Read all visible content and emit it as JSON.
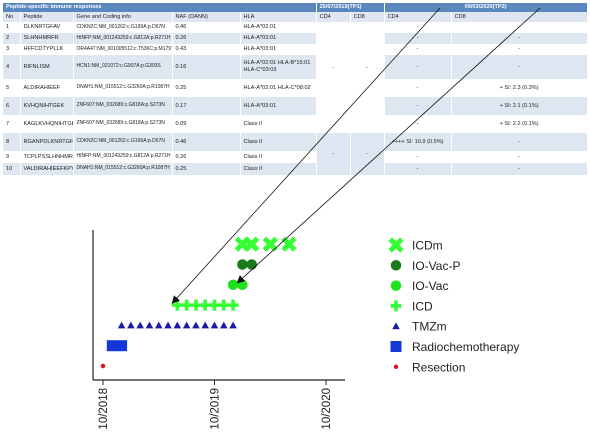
{
  "table": {
    "title": "Peptide-specific immune responses",
    "tp1_label": "25/07/2019(TP1)",
    "tp2_label": "09/03/2020(TP2)",
    "headers": [
      "No",
      "Peptide",
      "Gene and Coding info",
      "NAF (DANN)",
      "HLA",
      "CD4",
      "CD8",
      "CD4",
      "CD8"
    ],
    "rows": [
      {
        "no": "1",
        "peptide": "DLKNRTGFAV",
        "gene": "CDKN2C:NM_001262:c.G199A:p.D67N",
        "naf": "0.46",
        "hla": "HLA-A*02:01",
        "tp2_cd4": "-",
        "tp2_cd8": "-"
      },
      {
        "no": "2",
        "peptide": "SLHNHMRFR",
        "gene": "HINFP:NM_001243259:c.G812A:p.R271H",
        "naf": "0.26",
        "hla": "HLA-A*03:01",
        "tp2_cd4": "-",
        "tp2_cd8": "-"
      },
      {
        "no": "3",
        "peptide": "HFFCDTYPLLK",
        "gene": "OR4A47:NM_001005512:c.T536C:p.M179T",
        "naf": "0.43",
        "hla": "HLA-A*03:01",
        "tp2_cd4": "-",
        "tp2_cd8": "-"
      },
      {
        "no": "4",
        "peptide": "RIFNLISM",
        "gene": "HCN1:NM_021072:c.G907A:p.G303S",
        "naf": "0.16",
        "hla": "HLA-A*02:01 HLA-B*15:01 HLA-C*03:03",
        "tp2_cd4": "-",
        "tp2_cd8": "-"
      },
      {
        "no": "5",
        "peptide": "ALDIRAHIEEF",
        "gene": "DNAH1:NM_015512:c.G3260A:p.R1087H",
        "naf": "0.25",
        "hla": "HLA-A*02:01 HLA-C*08:02",
        "tp2_cd4": "-",
        "tp2_cd8": "+ SI: 2.3 (0.3%)"
      },
      {
        "no": "6",
        "peptide": "KVHQNIHTGEK",
        "gene": "ZNF607:NM_032689:c.G818A:p.S273N",
        "naf": "0.17",
        "hla": "HLA-A*03:01",
        "tp2_cd4": "-",
        "tp2_cd8": "+ SI: 2.1 (0.1%)"
      },
      {
        "no": "7",
        "peptide": "KAGLKVHQNIHTGEKPH",
        "gene": "ZNF607:NM_032689:c.G818A:p.S273N",
        "naf": "0.09",
        "hla": "Class II",
        "tp2_cd4": "-",
        "tp2_cd8": "+ SI: 2.2 (0.1%)"
      },
      {
        "no": "8",
        "peptide": "RGANPDLKNRTGFAVIH",
        "gene": "CDKN2C:NM_001262:c.G199A:p.D67N",
        "naf": "0.46",
        "hla": "Class II",
        "tp2_cd4": "++++ SI: 10.9 (0.5%)",
        "tp2_cd8": "-"
      },
      {
        "no": "9",
        "peptide": "TCPLPSSLHNHMRFHS",
        "gene": "HINFP:NM_001243259:c.G812A:p.R271H",
        "naf": "0.26",
        "hla": "Class II",
        "tp2_cd4": "-",
        "tp2_cd8": "-"
      },
      {
        "no": "10",
        "peptide": "VALDIRAHIEEFKPYI",
        "gene": "DNAH1:NM_015512:c.G3260A:p.R1087H",
        "naf": "0.25",
        "hla": "Class II",
        "tp2_cd4": "-",
        "tp2_cd8": "-"
      }
    ],
    "tp1_mhc1": {
      "cd4": "-",
      "cd8": "-"
    },
    "tp1_class2": {
      "cd4": "-",
      "cd8": "-"
    }
  },
  "chart_data": {
    "type": "scatter",
    "title": "",
    "xlabel": "",
    "ylabel": "",
    "xlim": [
      "2018-10",
      "2020-10"
    ],
    "x_ticks": [
      "10/2018",
      "10/2019",
      "10/2020"
    ],
    "grid": false,
    "legend_position": "right",
    "series": [
      {
        "name": "ICDm",
        "color": "#33ff33",
        "marker": "x",
        "level": 7,
        "x": [
          "2020-01",
          "2020-02",
          "2020-04",
          "2020-06"
        ]
      },
      {
        "name": "IO-Vac-P",
        "color": "#1a7a1a",
        "marker": "circle",
        "level": 6,
        "x": [
          "2020-01",
          "2020-02"
        ]
      },
      {
        "name": "IO-Vac",
        "color": "#1de21d",
        "marker": "circle",
        "level": 5,
        "x": [
          "2019-12",
          "2020-01"
        ]
      },
      {
        "name": "ICD",
        "color": "#33ff33",
        "marker": "plus",
        "level": 4,
        "x": [
          "2019-06",
          "2019-07",
          "2019-08",
          "2019-09",
          "2019-10",
          "2019-11",
          "2019-12"
        ]
      },
      {
        "name": "TMZm",
        "color": "#1a1aa8",
        "marker": "triangle",
        "level": 3,
        "x": [
          "2018-12",
          "2019-01",
          "2019-02",
          "2019-03",
          "2019-04",
          "2019-05",
          "2019-06",
          "2019-07",
          "2019-08",
          "2019-09",
          "2019-10",
          "2019-11",
          "2019-12"
        ]
      },
      {
        "name": "Radiochemotherapy",
        "color": "#1438d6",
        "marker": "square",
        "level": 2,
        "x": [
          "2018-11",
          "2018-12"
        ]
      },
      {
        "name": "Resection",
        "color": "#e01010",
        "marker": "dot",
        "level": 1,
        "x": [
          "2018-10"
        ]
      }
    ],
    "arrows": [
      {
        "from": "25/07/2019(TP1)",
        "to": "2019-06"
      },
      {
        "from": "09/03/2020(TP2)",
        "to": "2020-01"
      }
    ]
  }
}
